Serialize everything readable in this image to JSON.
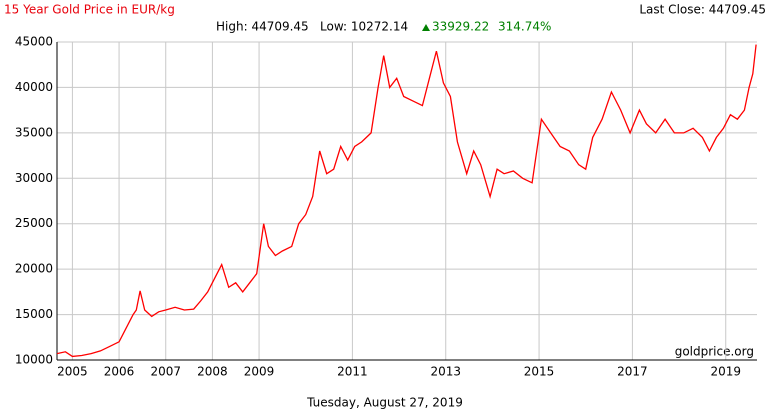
{
  "chart_data": {
    "type": "line",
    "title": "15 Year Gold Price in EUR/kg",
    "last_close": "Last Close: 44709.45",
    "high": "High: 44709.45",
    "low": "Low: 10272.14",
    "change": "33929.22",
    "change_pct": "314.74%",
    "source": "goldprice.org",
    "x_label": "Tuesday, August 27, 2019",
    "color": "#ff0000",
    "grid": true,
    "x": [
      2004.67,
      2004.85,
      2005.0,
      2005.2,
      2005.4,
      2005.6,
      2005.8,
      2006.0,
      2006.15,
      2006.3,
      2006.37,
      2006.45,
      2006.55,
      2006.7,
      2006.85,
      2007.0,
      2007.2,
      2007.4,
      2007.6,
      2007.75,
      2007.9,
      2008.05,
      2008.2,
      2008.35,
      2008.5,
      2008.65,
      2008.8,
      2008.95,
      2009.1,
      2009.2,
      2009.35,
      2009.5,
      2009.7,
      2009.85,
      2010.0,
      2010.15,
      2010.3,
      2010.45,
      2010.6,
      2010.75,
      2010.9,
      2011.05,
      2011.2,
      2011.4,
      2011.55,
      2011.67,
      2011.8,
      2011.95,
      2012.1,
      2012.3,
      2012.5,
      2012.65,
      2012.8,
      2012.95,
      2013.1,
      2013.25,
      2013.45,
      2013.6,
      2013.75,
      2013.95,
      2014.1,
      2014.25,
      2014.45,
      2014.65,
      2014.85,
      2015.05,
      2015.25,
      2015.45,
      2015.65,
      2015.85,
      2016.0,
      2016.15,
      2016.35,
      2016.55,
      2016.75,
      2016.95,
      2017.15,
      2017.3,
      2017.5,
      2017.7,
      2017.9,
      2018.1,
      2018.3,
      2018.5,
      2018.65,
      2018.8,
      2018.95,
      2019.1,
      2019.25,
      2019.4,
      2019.5,
      2019.58,
      2019.65
    ],
    "values": [
      10700,
      10900,
      10400,
      10500,
      10700,
      11000,
      11500,
      12000,
      13500,
      15000,
      15500,
      17600,
      15500,
      14800,
      15300,
      15500,
      15800,
      15500,
      15600,
      16500,
      17500,
      19000,
      20500,
      18000,
      18500,
      17500,
      18500,
      19500,
      25000,
      22500,
      21500,
      22000,
      22500,
      25000,
      26000,
      28000,
      33000,
      30500,
      31000,
      33500,
      32000,
      33500,
      34000,
      35000,
      40000,
      43500,
      40000,
      41000,
      39000,
      38500,
      38000,
      41000,
      44000,
      40500,
      39000,
      34000,
      30500,
      33000,
      31500,
      28000,
      31000,
      30500,
      30800,
      30000,
      29500,
      36500,
      35000,
      33500,
      33000,
      31500,
      31000,
      34500,
      36500,
      39500,
      37500,
      35000,
      37500,
      36000,
      35000,
      36500,
      35000,
      35000,
      35500,
      34500,
      33000,
      34500,
      35500,
      37000,
      36500,
      37500,
      40000,
      41500,
      44709.45
    ],
    "xlim": [
      2004.67,
      2019.67
    ],
    "xticks": [
      2005,
      2006,
      2007,
      2008,
      2009,
      2011,
      2013,
      2015,
      2017,
      2019
    ],
    "ylim": [
      10000,
      45000
    ],
    "yticks": [
      10000,
      15000,
      20000,
      25000,
      30000,
      35000,
      40000,
      45000
    ]
  }
}
